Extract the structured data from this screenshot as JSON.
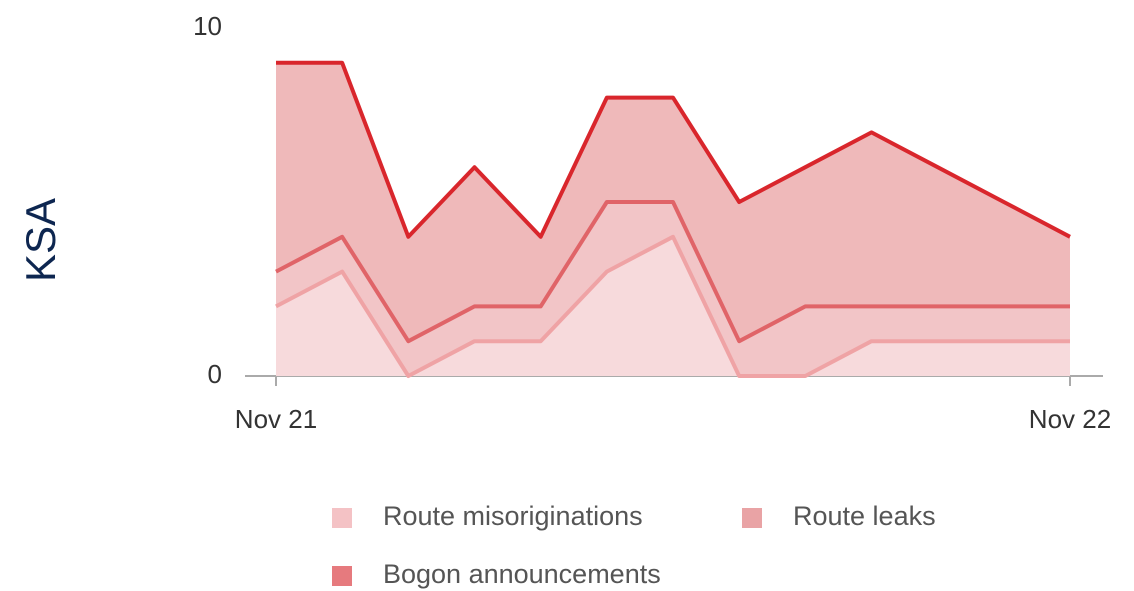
{
  "chart_data": {
    "type": "stacked_area",
    "title": "KSA",
    "categories": [
      "Nov 21",
      null,
      null,
      null,
      null,
      null,
      null,
      null,
      null,
      null,
      null,
      null,
      "Nov 22"
    ],
    "series": [
      {
        "name": "Route misoriginations",
        "color": "#efa3a5",
        "fill": "#f7dadc",
        "values": [
          2,
          3,
          0,
          1,
          1,
          3,
          4,
          0,
          0,
          1,
          1,
          1,
          1
        ]
      },
      {
        "name": "Route leaks",
        "color": "#e06468",
        "fill": "#f2c5c7",
        "values": [
          1,
          1,
          1,
          1,
          1,
          2,
          1,
          1,
          2,
          1,
          1,
          1,
          1
        ]
      },
      {
        "name": "Bogon announcements",
        "color": "#d9262c",
        "fill": "#efb9ba",
        "values": [
          6,
          5,
          3,
          4,
          2,
          3,
          3,
          4,
          4,
          5,
          4,
          3,
          2
        ]
      }
    ],
    "legend_colors": [
      "#f4c2c5",
      "#e9a3a5",
      "#e67a7e"
    ],
    "ylim": [
      0,
      10
    ],
    "yticks": [
      0,
      10
    ],
    "grid": false
  }
}
